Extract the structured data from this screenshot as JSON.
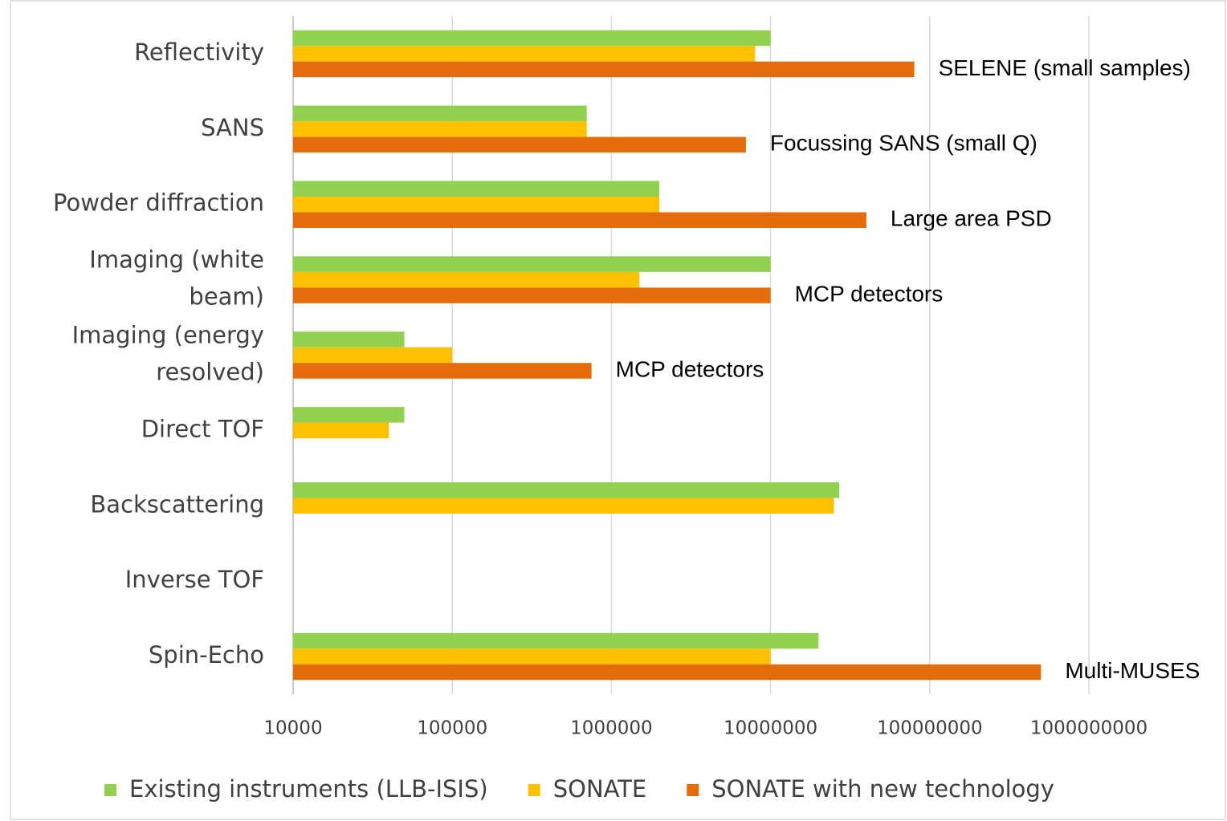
{
  "chart_data": {
    "type": "barh",
    "categories": [
      "Reflectivity",
      "SANS",
      "Powder diffraction",
      "Imaging (white beam)",
      "Imaging (energy resolved)",
      "Direct TOF",
      "Backscattering",
      "Inverse TOF",
      "Spin-Echo"
    ],
    "series": [
      {
        "name": "Existing instruments (LLB-ISIS)",
        "color": "#92d050",
        "values": [
          10000000,
          700000,
          2000000,
          10000000,
          50000,
          50000,
          27000000,
          null,
          20000000
        ]
      },
      {
        "name": "SONATE",
        "color": "#ffc000",
        "values": [
          8000000,
          700000,
          2000000,
          1500000,
          100000,
          40000,
          25000000,
          null,
          10000000
        ]
      },
      {
        "name": "SONATE with new technology",
        "color": "#e46c0a",
        "values": [
          80000000,
          7000000,
          40000000,
          10000000,
          750000,
          null,
          null,
          null,
          500000000
        ]
      }
    ],
    "annotations": [
      "SELENE (small samples)",
      "Focussing SANS (small Q)",
      "Large area PSD",
      "MCP detectors",
      "MCP detectors",
      null,
      null,
      null,
      "Multi-MUSES"
    ],
    "xlim": [
      10000,
      1000000000
    ],
    "xticks": [
      10000,
      100000,
      1000000,
      10000000,
      100000000,
      1000000000
    ],
    "xscale": "log",
    "grid": true,
    "legend": "bottom"
  }
}
